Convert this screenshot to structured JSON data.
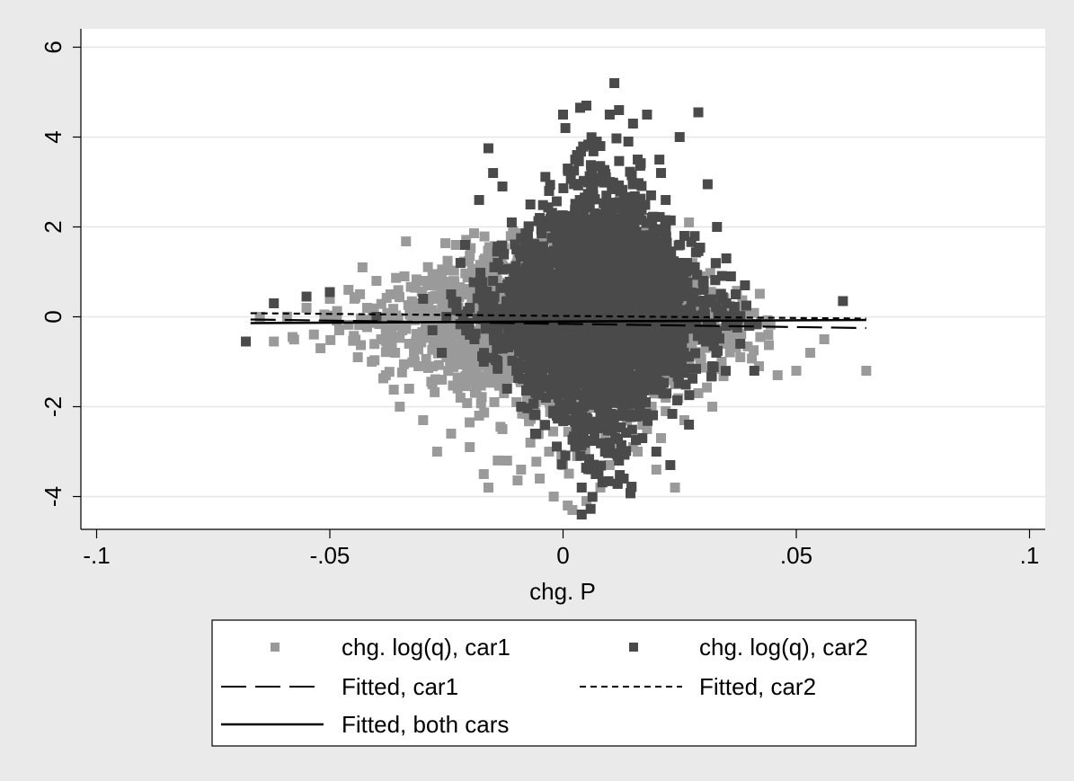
{
  "chart_data": {
    "type": "scatter",
    "title": "",
    "xlabel": "chg. P",
    "ylabel": "",
    "xlim": [
      -0.1,
      0.1
    ],
    "ylim": [
      -4.7,
      6.3
    ],
    "grid": true,
    "legend_placement": "bottom",
    "x_ticks": [
      {
        "value": -0.1,
        "label": "-.1"
      },
      {
        "value": -0.05,
        "label": "-.05"
      },
      {
        "value": 0,
        "label": "0"
      },
      {
        "value": 0.05,
        "label": ".05"
      },
      {
        "value": 0.1,
        "label": ".1"
      }
    ],
    "y_ticks": [
      {
        "value": -4,
        "label": "-4"
      },
      {
        "value": -2,
        "label": "-2"
      },
      {
        "value": 0,
        "label": "0"
      },
      {
        "value": 2,
        "label": "2"
      },
      {
        "value": 4,
        "label": "4"
      },
      {
        "value": 6,
        "label": "6"
      }
    ],
    "series": [
      {
        "name": "chg. log(q), car1",
        "kind": "scatter",
        "color": "#9a9a9a",
        "points": [
          [
            -0.065,
            0.0
          ],
          [
            -0.062,
            -0.55
          ],
          [
            -0.058,
            -0.45
          ],
          [
            -0.055,
            0.2
          ],
          [
            -0.052,
            -0.7
          ],
          [
            -0.05,
            0.4
          ],
          [
            -0.048,
            -0.3
          ],
          [
            -0.046,
            0.6
          ],
          [
            -0.044,
            -0.9
          ],
          [
            -0.043,
            1.1
          ],
          [
            -0.042,
            0.2
          ],
          [
            -0.041,
            -1.0
          ],
          [
            -0.04,
            0.8
          ],
          [
            -0.039,
            -0.5
          ],
          [
            -0.038,
            -1.3
          ],
          [
            -0.037,
            0.5
          ],
          [
            -0.036,
            -0.8
          ],
          [
            -0.035,
            -2.0
          ],
          [
            -0.034,
            0.9
          ],
          [
            -0.033,
            -1.6
          ],
          [
            -0.032,
            0.3
          ],
          [
            -0.031,
            -1.1
          ],
          [
            -0.03,
            -2.3
          ],
          [
            -0.029,
            0.7
          ],
          [
            -0.028,
            -1.5
          ],
          [
            -0.027,
            -3.0
          ],
          [
            -0.026,
            0.4
          ],
          [
            -0.025,
            -0.9
          ],
          [
            -0.024,
            -2.6
          ],
          [
            -0.023,
            1.6
          ],
          [
            -0.022,
            -1.8
          ],
          [
            -0.021,
            -0.4
          ],
          [
            -0.02,
            -2.9
          ],
          [
            -0.019,
            1.0
          ],
          [
            -0.018,
            -2.2
          ],
          [
            -0.017,
            -3.5
          ],
          [
            -0.016,
            -3.8
          ],
          [
            -0.015,
            -1.3
          ],
          [
            -0.014,
            0.6
          ],
          [
            -0.013,
            -2.5
          ],
          [
            -0.012,
            -3.2
          ],
          [
            -0.011,
            -0.7
          ],
          [
            -0.01,
            -1.9
          ],
          [
            -0.009,
            -3.4
          ],
          [
            -0.008,
            -2.1
          ],
          [
            -0.007,
            -2.8
          ],
          [
            -0.006,
            -1.1
          ],
          [
            -0.005,
            -3.6
          ],
          [
            -0.004,
            -2.4
          ],
          [
            -0.003,
            -3.0
          ],
          [
            -0.002,
            -4.0
          ],
          [
            -0.001,
            -2.2
          ],
          [
            0.0,
            -3.3
          ],
          [
            0.001,
            -4.2
          ],
          [
            0.002,
            -4.3
          ],
          [
            0.003,
            -3.1
          ],
          [
            0.004,
            -2.6
          ],
          [
            0.005,
            -4.1
          ],
          [
            0.006,
            -3.4
          ],
          [
            0.007,
            -2.0
          ],
          [
            0.008,
            -3.8
          ],
          [
            0.009,
            -2.7
          ],
          [
            0.01,
            -3.3
          ],
          [
            0.011,
            -1.6
          ],
          [
            0.012,
            -2.9
          ],
          [
            0.013,
            -3.6
          ],
          [
            0.014,
            -2.2
          ],
          [
            0.015,
            -1.5
          ],
          [
            0.016,
            -3.0
          ],
          [
            0.017,
            -2.4
          ],
          [
            0.018,
            -0.9
          ],
          [
            0.019,
            -2.0
          ],
          [
            0.02,
            -1.3
          ],
          [
            0.021,
            -2.7
          ],
          [
            0.022,
            -1.8
          ],
          [
            0.023,
            -0.6
          ],
          [
            0.024,
            -3.8
          ],
          [
            0.025,
            -1.2
          ],
          [
            0.026,
            -2.3
          ],
          [
            0.027,
            2.1
          ],
          [
            0.028,
            -0.8
          ],
          [
            0.029,
            -1.7
          ],
          [
            0.03,
            0.9
          ],
          [
            0.031,
            -0.4
          ],
          [
            0.032,
            -2.0
          ],
          [
            0.033,
            0.5
          ],
          [
            0.034,
            -1.0
          ],
          [
            0.035,
            -0.6
          ],
          [
            0.036,
            0.2
          ],
          [
            0.038,
            -0.9
          ],
          [
            0.04,
            -0.2
          ],
          [
            0.042,
            -1.1
          ],
          [
            0.044,
            -0.4
          ],
          [
            0.046,
            -1.3
          ],
          [
            0.05,
            -1.2
          ],
          [
            0.053,
            -0.8
          ],
          [
            0.056,
            -0.5
          ],
          [
            0.065,
            -1.2
          ],
          [
            -0.03,
            0.8
          ],
          [
            -0.028,
            0.95
          ],
          [
            -0.026,
            0.6
          ],
          [
            -0.024,
            0.3
          ],
          [
            -0.022,
            -0.9
          ],
          [
            -0.02,
            -0.3
          ],
          [
            -0.018,
            0.2
          ],
          [
            -0.016,
            -0.5
          ],
          [
            -0.014,
            -1.0
          ],
          [
            -0.012,
            0.1
          ],
          [
            -0.035,
            -0.2
          ],
          [
            -0.033,
            -0.6
          ],
          [
            -0.031,
            0.1
          ],
          [
            -0.029,
            -0.3
          ],
          [
            -0.027,
            -0.7
          ],
          [
            -0.025,
            0.0
          ],
          [
            0.015,
            -2.9
          ],
          [
            0.018,
            -2.5
          ],
          [
            0.02,
            -3.4
          ],
          [
            0.022,
            -2.1
          ],
          [
            0.024,
            -1.5
          ],
          [
            0.026,
            -1.0
          ]
        ]
      },
      {
        "name": "chg. log(q), car2",
        "kind": "scatter",
        "color": "#4a4a4a",
        "points": [
          [
            -0.068,
            -0.55
          ],
          [
            -0.062,
            0.3
          ],
          [
            -0.055,
            0.45
          ],
          [
            -0.05,
            0.55
          ],
          [
            -0.04,
            0.0
          ],
          [
            -0.03,
            0.4
          ],
          [
            -0.028,
            -0.3
          ],
          [
            -0.026,
            -0.8
          ],
          [
            -0.024,
            0.5
          ],
          [
            -0.022,
            1.2
          ],
          [
            -0.021,
            1.6
          ],
          [
            -0.02,
            0.2
          ],
          [
            -0.019,
            -0.5
          ],
          [
            -0.018,
            2.6
          ],
          [
            -0.017,
            -1.0
          ],
          [
            -0.016,
            3.75
          ],
          [
            -0.015,
            3.2
          ],
          [
            -0.014,
            1.2
          ],
          [
            -0.013,
            2.9
          ],
          [
            -0.012,
            -1.6
          ],
          [
            -0.011,
            2.1
          ],
          [
            -0.01,
            0.6
          ],
          [
            -0.009,
            -2.0
          ],
          [
            -0.008,
            1.8
          ],
          [
            -0.007,
            2.5
          ],
          [
            -0.006,
            -2.6
          ],
          [
            -0.005,
            2.2
          ],
          [
            -0.004,
            -0.8
          ],
          [
            -0.003,
            2.8
          ],
          [
            -0.002,
            1.2
          ],
          [
            -0.001,
            -1.8
          ],
          [
            0.0,
            4.5
          ],
          [
            0.0005,
            4.2
          ],
          [
            0.001,
            3.3
          ],
          [
            0.002,
            -2.3
          ],
          [
            0.003,
            3.6
          ],
          [
            0.004,
            -3.8
          ],
          [
            0.004,
            -4.4
          ],
          [
            0.005,
            4.7
          ],
          [
            0.006,
            2.9
          ],
          [
            0.007,
            -3.5
          ],
          [
            0.008,
            3.8
          ],
          [
            0.009,
            -3.0
          ],
          [
            0.01,
            4.5
          ],
          [
            0.011,
            5.2
          ],
          [
            0.012,
            4.6
          ],
          [
            0.013,
            -3.6
          ],
          [
            0.014,
            3.9
          ],
          [
            0.015,
            4.3
          ],
          [
            0.016,
            3.5
          ],
          [
            0.017,
            -2.7
          ],
          [
            0.018,
            4.5
          ],
          [
            0.019,
            2.2
          ],
          [
            0.02,
            -3.0
          ],
          [
            0.021,
            3.2
          ],
          [
            0.022,
            2.6
          ],
          [
            0.023,
            -3.3
          ],
          [
            0.024,
            1.0
          ],
          [
            0.025,
            4.0
          ],
          [
            0.026,
            1.8
          ],
          [
            0.027,
            -2.4
          ],
          [
            0.028,
            1.1
          ],
          [
            0.029,
            4.55
          ],
          [
            0.03,
            0.6
          ],
          [
            0.031,
            2.95
          ],
          [
            0.032,
            -1.1
          ],
          [
            0.033,
            2.0
          ],
          [
            0.034,
            0.4
          ],
          [
            0.035,
            1.3
          ],
          [
            0.036,
            0.9
          ],
          [
            0.037,
            0.5
          ],
          [
            0.038,
            -0.6
          ],
          [
            0.039,
            0.7
          ],
          [
            0.041,
            -1.2
          ],
          [
            0.06,
            0.35
          ],
          [
            -0.025,
            0.0
          ],
          [
            -0.02,
            -0.4
          ],
          [
            -0.015,
            0.8
          ],
          [
            -0.01,
            1.5
          ],
          [
            -0.005,
            0.9
          ],
          [
            0.0,
            2.0
          ],
          [
            0.005,
            2.5
          ],
          [
            0.01,
            3.0
          ],
          [
            0.015,
            2.4
          ],
          [
            0.02,
            1.9
          ],
          [
            0.025,
            1.2
          ],
          [
            0.03,
            0.8
          ],
          [
            0.035,
            0.3
          ],
          [
            -0.01,
            -1.2
          ],
          [
            -0.005,
            -1.6
          ],
          [
            0.0,
            -2.0
          ],
          [
            0.005,
            -2.5
          ],
          [
            0.01,
            -2.8
          ],
          [
            0.015,
            -2.2
          ],
          [
            0.02,
            -1.6
          ],
          [
            0.025,
            -1.0
          ],
          [
            0.03,
            -0.5
          ],
          [
            0.035,
            -0.2
          ],
          [
            0.012,
            -3.2
          ],
          [
            0.008,
            -2.2
          ],
          [
            0.018,
            -1.3
          ],
          [
            -0.002,
            -0.6
          ]
        ]
      },
      {
        "name": "Fitted, car1",
        "kind": "line",
        "dash": "long",
        "color": "#000000",
        "points": [
          [
            -0.067,
            -0.06
          ],
          [
            0.065,
            -0.25
          ]
        ]
      },
      {
        "name": "Fitted, car2",
        "kind": "line",
        "dash": "short",
        "color": "#000000",
        "points": [
          [
            -0.067,
            0.08
          ],
          [
            0.065,
            -0.04
          ]
        ]
      },
      {
        "name": "Fitted, both cars",
        "kind": "line",
        "dash": "solid",
        "color": "#000000",
        "points": [
          [
            -0.067,
            -0.14
          ],
          [
            0.065,
            -0.07
          ]
        ]
      }
    ]
  }
}
